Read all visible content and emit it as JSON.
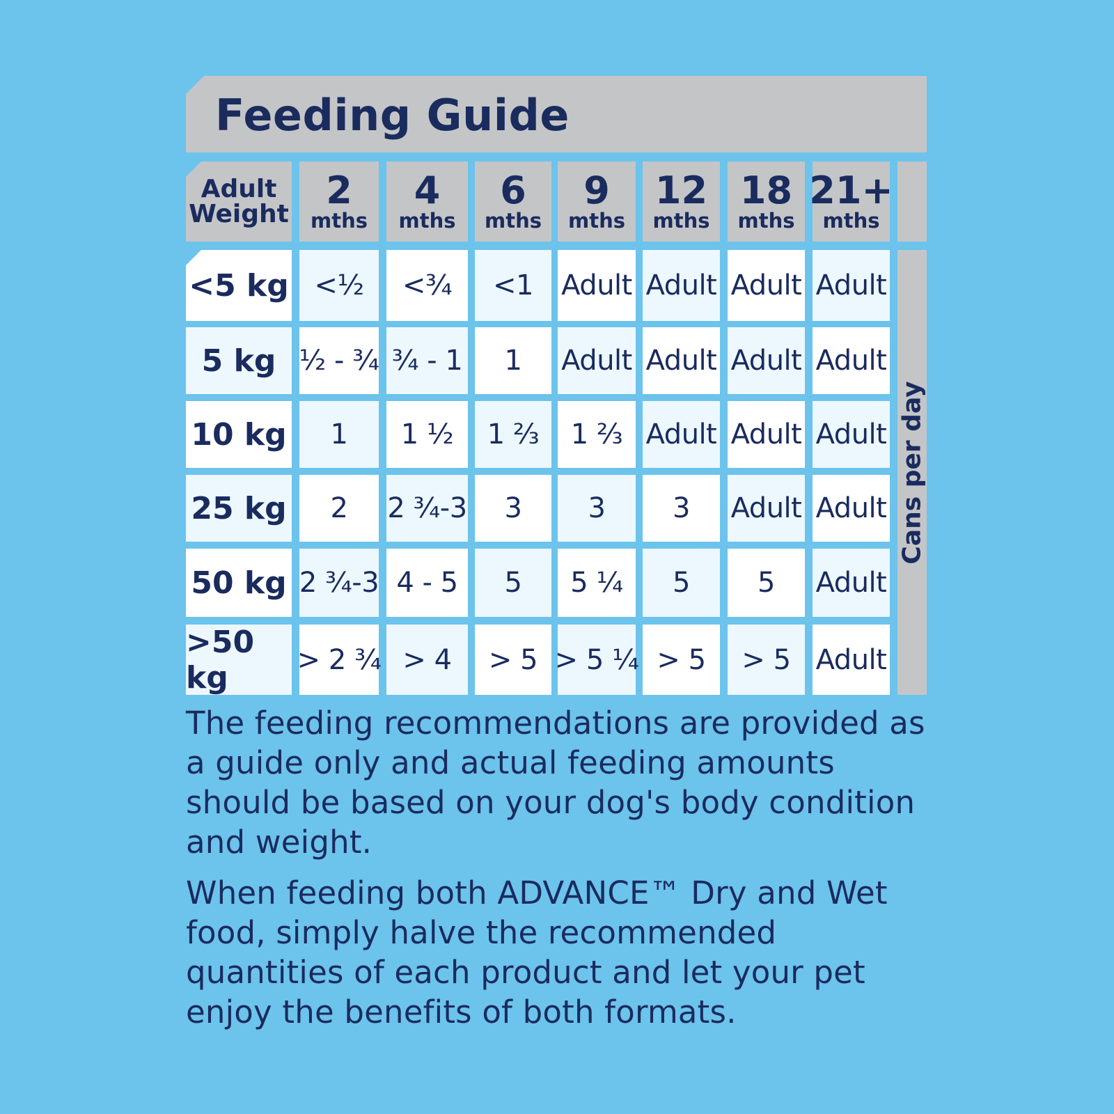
{
  "title": "Feeding Guide",
  "header": {
    "weight_label_line1": "Adult",
    "weight_label_line2": "Weight",
    "ages": [
      {
        "num": "2",
        "unit": "mths"
      },
      {
        "num": "4",
        "unit": "mths"
      },
      {
        "num": "6",
        "unit": "mths"
      },
      {
        "num": "9",
        "unit": "mths"
      },
      {
        "num": "12",
        "unit": "mths"
      },
      {
        "num": "18",
        "unit": "mths"
      },
      {
        "num": "21+",
        "unit": "mths"
      }
    ]
  },
  "side_label": "Cans per day",
  "rows": [
    {
      "weight": "<5 kg",
      "values": [
        "<½",
        "<¾",
        "<1",
        "Adult",
        "Adult",
        "Adult",
        "Adult"
      ]
    },
    {
      "weight": "5 kg",
      "values": [
        "½ - ¾",
        "¾ - 1",
        "1",
        "Adult",
        "Adult",
        "Adult",
        "Adult"
      ]
    },
    {
      "weight": "10 kg",
      "values": [
        "1",
        "1 ½",
        "1 ²⁄₃",
        "1 ²⁄₃",
        "Adult",
        "Adult",
        "Adult"
      ]
    },
    {
      "weight": "25 kg",
      "values": [
        "2",
        "2 ¾-3",
        "3",
        "3",
        "3",
        "Adult",
        "Adult"
      ]
    },
    {
      "weight": "50 kg",
      "values": [
        "2 ¾-3",
        "4 - 5",
        "5",
        "5 ¼",
        "5",
        "5",
        "Adult"
      ]
    },
    {
      "weight": ">50 kg",
      "values": [
        "> 2 ¾",
        "> 4",
        "> 5",
        "> 5 ¼",
        "> 5",
        "> 5",
        "Adult"
      ]
    }
  ],
  "notes": [
    "The feeding recommendations are provided as a guide only and actual feeding amounts should be based on your dog's body condition and weight.",
    "When feeding both ADVANCE™ Dry and Wet food, simply halve the recommended quantities of each product and let your pet enjoy the benefits of both formats."
  ]
}
